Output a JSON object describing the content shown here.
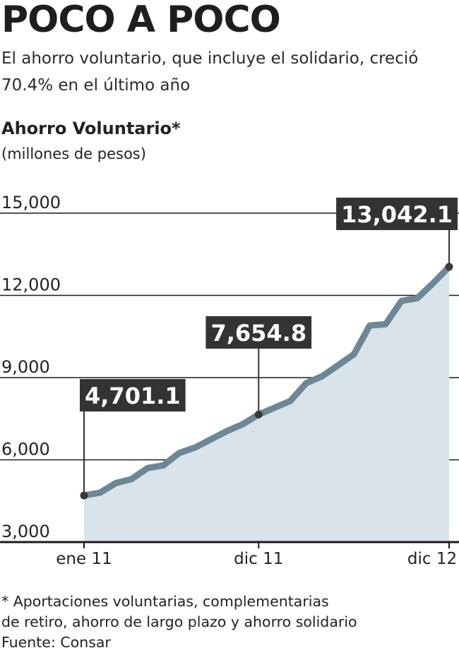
{
  "header": {
    "title": "POCO A POCO",
    "subtitle": "El ahorro voluntario, que incluye el solidario, creció 70.4% en el último año"
  },
  "chart_data": {
    "type": "area",
    "title": "Ahorro Voluntario*",
    "ylabel": "(millones de pesos)",
    "ylim": [
      3000,
      15000
    ],
    "yticks": [
      3000,
      6000,
      9000,
      12000,
      15000
    ],
    "ytick_labels": [
      "3,000",
      "6,000",
      "9,000",
      "12,000",
      "15,000"
    ],
    "xtick_labels": [
      {
        "index": 0,
        "label": "ene 11"
      },
      {
        "index": 11,
        "label": "dic 11"
      },
      {
        "index": 23,
        "label": "dic 12"
      }
    ],
    "grid": true,
    "values": [
      4701.1,
      4800,
      5150,
      5300,
      5700,
      5800,
      6250,
      6450,
      6750,
      7050,
      7300,
      7654.8,
      7900,
      8150,
      8800,
      9050,
      9450,
      9850,
      10900,
      10950,
      11800,
      11900,
      12450,
      13042.1
    ],
    "callouts": [
      {
        "index": 0,
        "label": "4,701.1"
      },
      {
        "index": 11,
        "label": "7,654.8"
      },
      {
        "index": 23,
        "label": "13,042.1"
      }
    ],
    "colors": {
      "fill": "#d8e3ea",
      "line": "#6e8797",
      "callout_bg": "#333333",
      "grid": "#1a1a1a"
    }
  },
  "footnote": {
    "line1": "* Aportaciones voluntarias, complementarias",
    "line2": "de retiro, ahorro de largo plazo y ahorro solidario",
    "source": "Fuente: Consar"
  }
}
